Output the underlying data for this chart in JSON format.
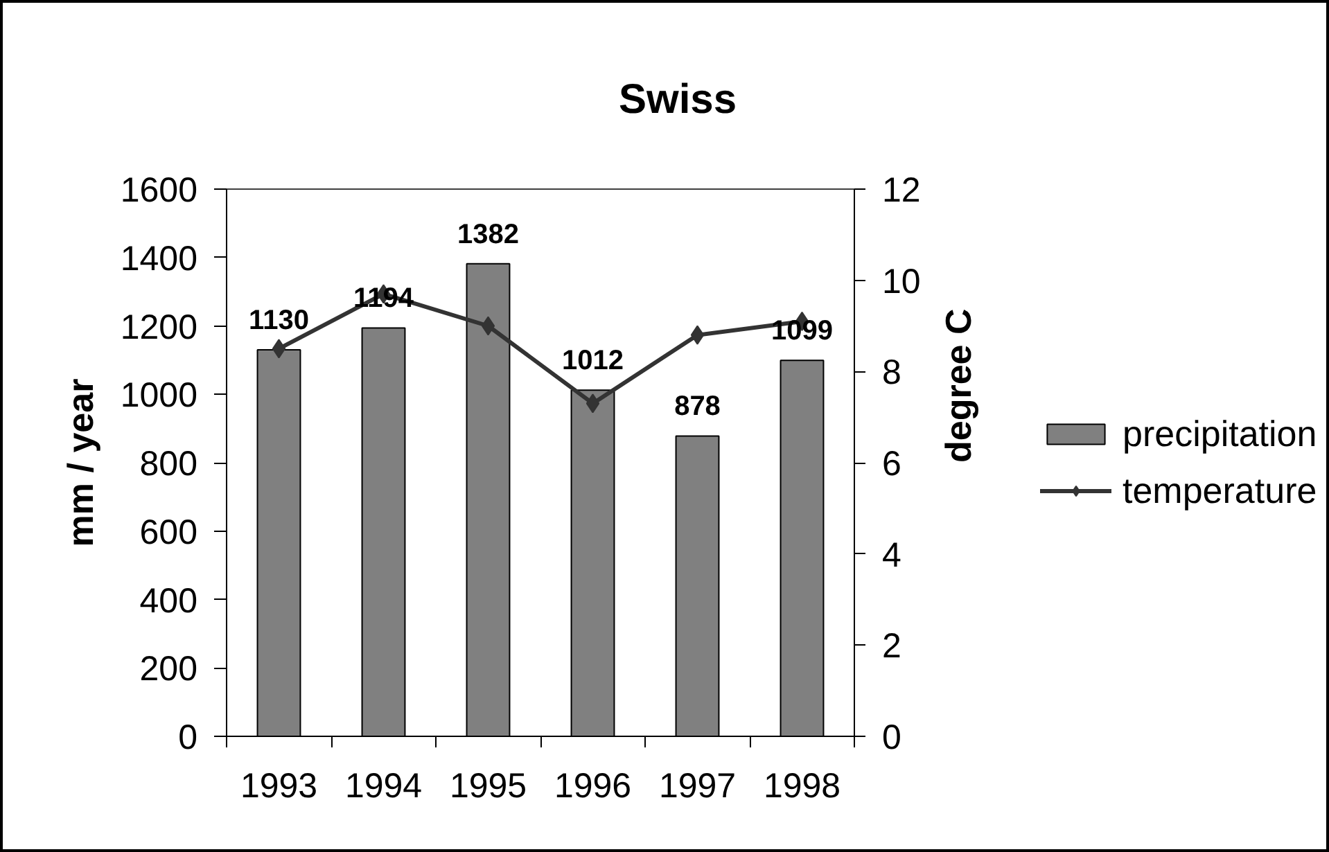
{
  "chart_data": {
    "type": "bar",
    "title": "Swiss",
    "ylabel": "mm / year",
    "y2label": "degree C",
    "categories": [
      "1993",
      "1994",
      "1995",
      "1996",
      "1997",
      "1998"
    ],
    "series": [
      {
        "name": "precipitation",
        "color": "#808080",
        "values": [
          1130,
          1194,
          1382,
          1012,
          878,
          1099
        ],
        "value_labels": [
          "1130",
          "1194",
          "1382",
          "1012",
          "878",
          "1099"
        ]
      },
      {
        "name": "temperature",
        "type": "line",
        "axis": "y2",
        "color": "#333333",
        "marker": "diamond",
        "values": [
          8.5,
          9.7,
          9.0,
          7.3,
          8.8,
          9.1
        ]
      }
    ],
    "ylim": [
      0,
      1600
    ],
    "yticks": [
      0,
      200,
      400,
      600,
      800,
      1000,
      1200,
      1400,
      1600
    ],
    "y2lim": [
      0,
      12
    ],
    "y2ticks": [
      0,
      2,
      4,
      6,
      8,
      10,
      12
    ],
    "legend": "right"
  }
}
